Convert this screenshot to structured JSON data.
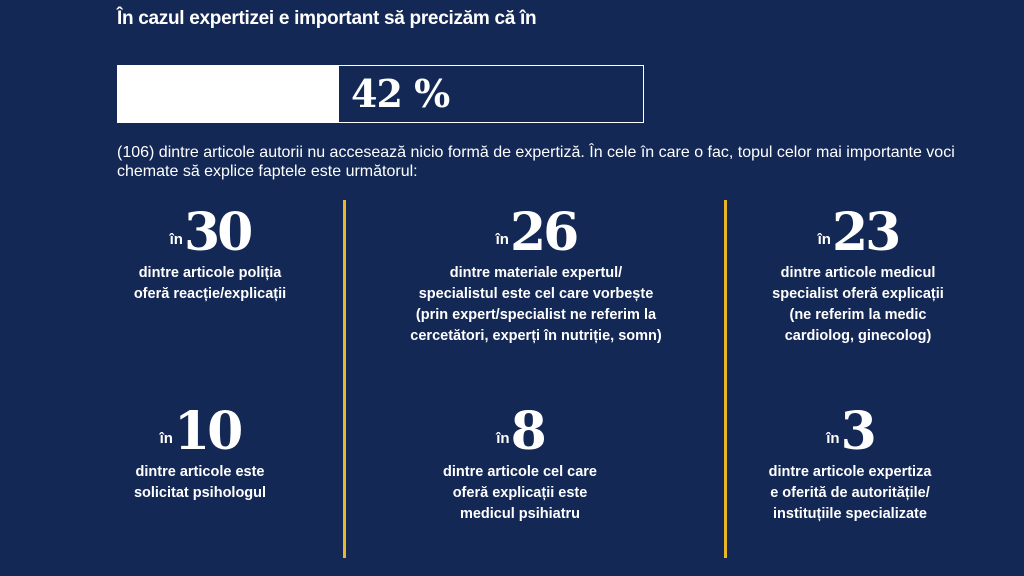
{
  "title": "În cazul expertizei e important să precizăm că în",
  "progress": {
    "value": 42,
    "label": "42 %"
  },
  "intro": "(106) dintre articole autorii nu accesează nicio formă de expertiză. În cele în care o fac, topul celor mai importante voci chemate să explice faptele este următorul:",
  "colors": {
    "background": "#132855",
    "accent": "#e8b627",
    "text": "#ffffff"
  },
  "stats": [
    {
      "prefix": "în",
      "number": "30",
      "text": "dintre articole poliția\noferă reacție/explicații"
    },
    {
      "prefix": "în",
      "number": "26",
      "text": "dintre materiale expertul/\nspecialistul este cel care vorbește\n(prin expert/specialist ne referim la\ncercetători, experți în nutriție, somn)"
    },
    {
      "prefix": "în",
      "number": "23",
      "text": "dintre articole medicul\nspecialist oferă explicații\n(ne referim la medic\ncardiolog, ginecolog)"
    },
    {
      "prefix": "în",
      "number": "10",
      "text": "dintre articole este\nsolicitat psihologul"
    },
    {
      "prefix": "în",
      "number": "8",
      "text": "dintre articole cel care\noferă explicații este\nmedicul psihiatru"
    },
    {
      "prefix": "în",
      "number": "3",
      "text": "dintre articole expertiza\ne oferită de autoritățile/\ninstituțiile specializate"
    }
  ]
}
